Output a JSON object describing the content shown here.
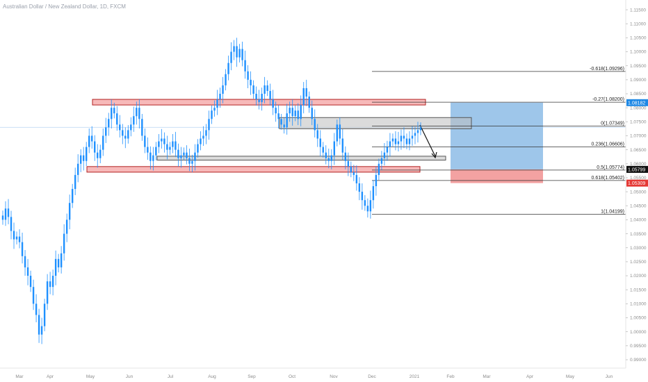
{
  "chart_data": {
    "type": "candlestick",
    "title": "Australian Dollar / New Zealand Dollar, 1D, FXCM",
    "up_color": "#1e90ff",
    "down_color": "#1e90ff",
    "x_labels": [
      "Mar",
      "Apr",
      "May",
      "Jun",
      "Jul",
      "Aug",
      "Sep",
      "Oct",
      "Nov",
      "Dec",
      "2021",
      "Feb",
      "Mar",
      "Apr",
      "May",
      "Jun"
    ],
    "y_labels": [
      "1.11500",
      "1.11000",
      "1.10500",
      "1.10000",
      "1.09500",
      "1.09000",
      "1.08500",
      "1.08000",
      "1.07500",
      "1.07000",
      "1.06500",
      "1.06000",
      "1.05500",
      "1.05000",
      "1.04500",
      "1.04000",
      "1.03500",
      "1.03000",
      "1.02500",
      "1.02000",
      "1.01500",
      "1.01000",
      "1.00500",
      "1.00000",
      "0.99500",
      "0.99000"
    ],
    "ylim": [
      0.989,
      1.117
    ],
    "current_line": 1.073,
    "price_tags": [
      {
        "label": "1.08182",
        "value": 1.08182,
        "color": "#1e88e5"
      },
      {
        "label": "1.05799",
        "value": 1.05799,
        "color": "#111111"
      },
      {
        "label": "1.05309",
        "value": 1.05309,
        "color": "#e53935"
      }
    ],
    "fib_levels": [
      {
        "label": "-0.618(1.09296)",
        "value": 1.09296
      },
      {
        "label": "-0.27(1.08200)",
        "value": 1.082
      },
      {
        "label": "0(1.07349)",
        "value": 1.07349
      },
      {
        "label": "0.236(1.06606)",
        "value": 1.06606
      },
      {
        "label": "0.5(1.05774)",
        "value": 1.05774
      },
      {
        "label": "0.618(1.05402)",
        "value": 1.05402
      },
      {
        "label": "1(1.04199)",
        "value": 1.04199
      }
    ],
    "zones": [
      {
        "name": "resistance-zone",
        "color": "red",
        "x0": "mid-May",
        "x1": "mid-Jan",
        "y0": 1.081,
        "y1": 1.083
      },
      {
        "name": "support-zone",
        "color": "red",
        "x0": "early-May",
        "x1": "mid-Jan",
        "y0": 1.057,
        "y1": 1.059
      },
      {
        "name": "supply-zone",
        "color": "gray",
        "x0": "late-Sep",
        "x1": "mid-Feb",
        "y0": 1.0725,
        "y1": 1.0765
      },
      {
        "name": "demand-zone",
        "color": "gray",
        "x0": "mid-Jun",
        "x1": "late-Jan",
        "y0": 1.0613,
        "y1": 1.0627
      }
    ],
    "position": {
      "entry": 1.05799,
      "target": 1.08182,
      "stop": 1.05309
    },
    "closes": [
      1.04,
      1.044,
      1.041,
      1.036,
      1.033,
      1.034,
      1.032,
      1.027,
      1.023,
      1.02,
      1.016,
      1.01,
      1.006,
      0.999,
      1.002,
      1.01,
      1.018,
      1.016,
      1.02,
      1.026,
      1.023,
      1.028,
      1.035,
      1.04,
      1.046,
      1.051,
      1.056,
      1.06,
      1.063,
      1.061,
      1.066,
      1.07,
      1.068,
      1.064,
      1.062,
      1.065,
      1.07,
      1.073,
      1.076,
      1.08,
      1.078,
      1.074,
      1.072,
      1.07,
      1.069,
      1.072,
      1.074,
      1.077,
      1.08,
      1.076,
      1.07,
      1.066,
      1.064,
      1.061,
      1.063,
      1.066,
      1.068,
      1.069,
      1.067,
      1.065,
      1.066,
      1.068,
      1.065,
      1.062,
      1.063,
      1.064,
      1.062,
      1.06,
      1.061,
      1.064,
      1.067,
      1.069,
      1.07,
      1.072,
      1.076,
      1.079,
      1.08,
      1.083,
      1.085,
      1.088,
      1.092,
      1.096,
      1.1,
      1.102,
      1.098,
      1.101,
      1.097,
      1.093,
      1.09,
      1.088,
      1.085,
      1.083,
      1.082,
      1.085,
      1.088,
      1.086,
      1.083,
      1.08,
      1.078,
      1.076,
      1.074,
      1.073,
      1.078,
      1.08,
      1.077,
      1.079,
      1.076,
      1.081,
      1.087,
      1.084,
      1.08,
      1.076,
      1.072,
      1.069,
      1.066,
      1.064,
      1.062,
      1.061,
      1.063,
      1.068,
      1.074,
      1.069,
      1.064,
      1.061,
      1.059,
      1.057,
      1.056,
      1.053,
      1.05,
      1.047,
      1.045,
      1.043,
      1.047,
      1.052,
      1.056,
      1.06,
      1.062,
      1.064,
      1.066,
      1.068,
      1.069,
      1.067,
      1.068,
      1.07,
      1.069,
      1.067,
      1.069,
      1.07,
      1.071,
      1.072,
      1.073
    ]
  }
}
